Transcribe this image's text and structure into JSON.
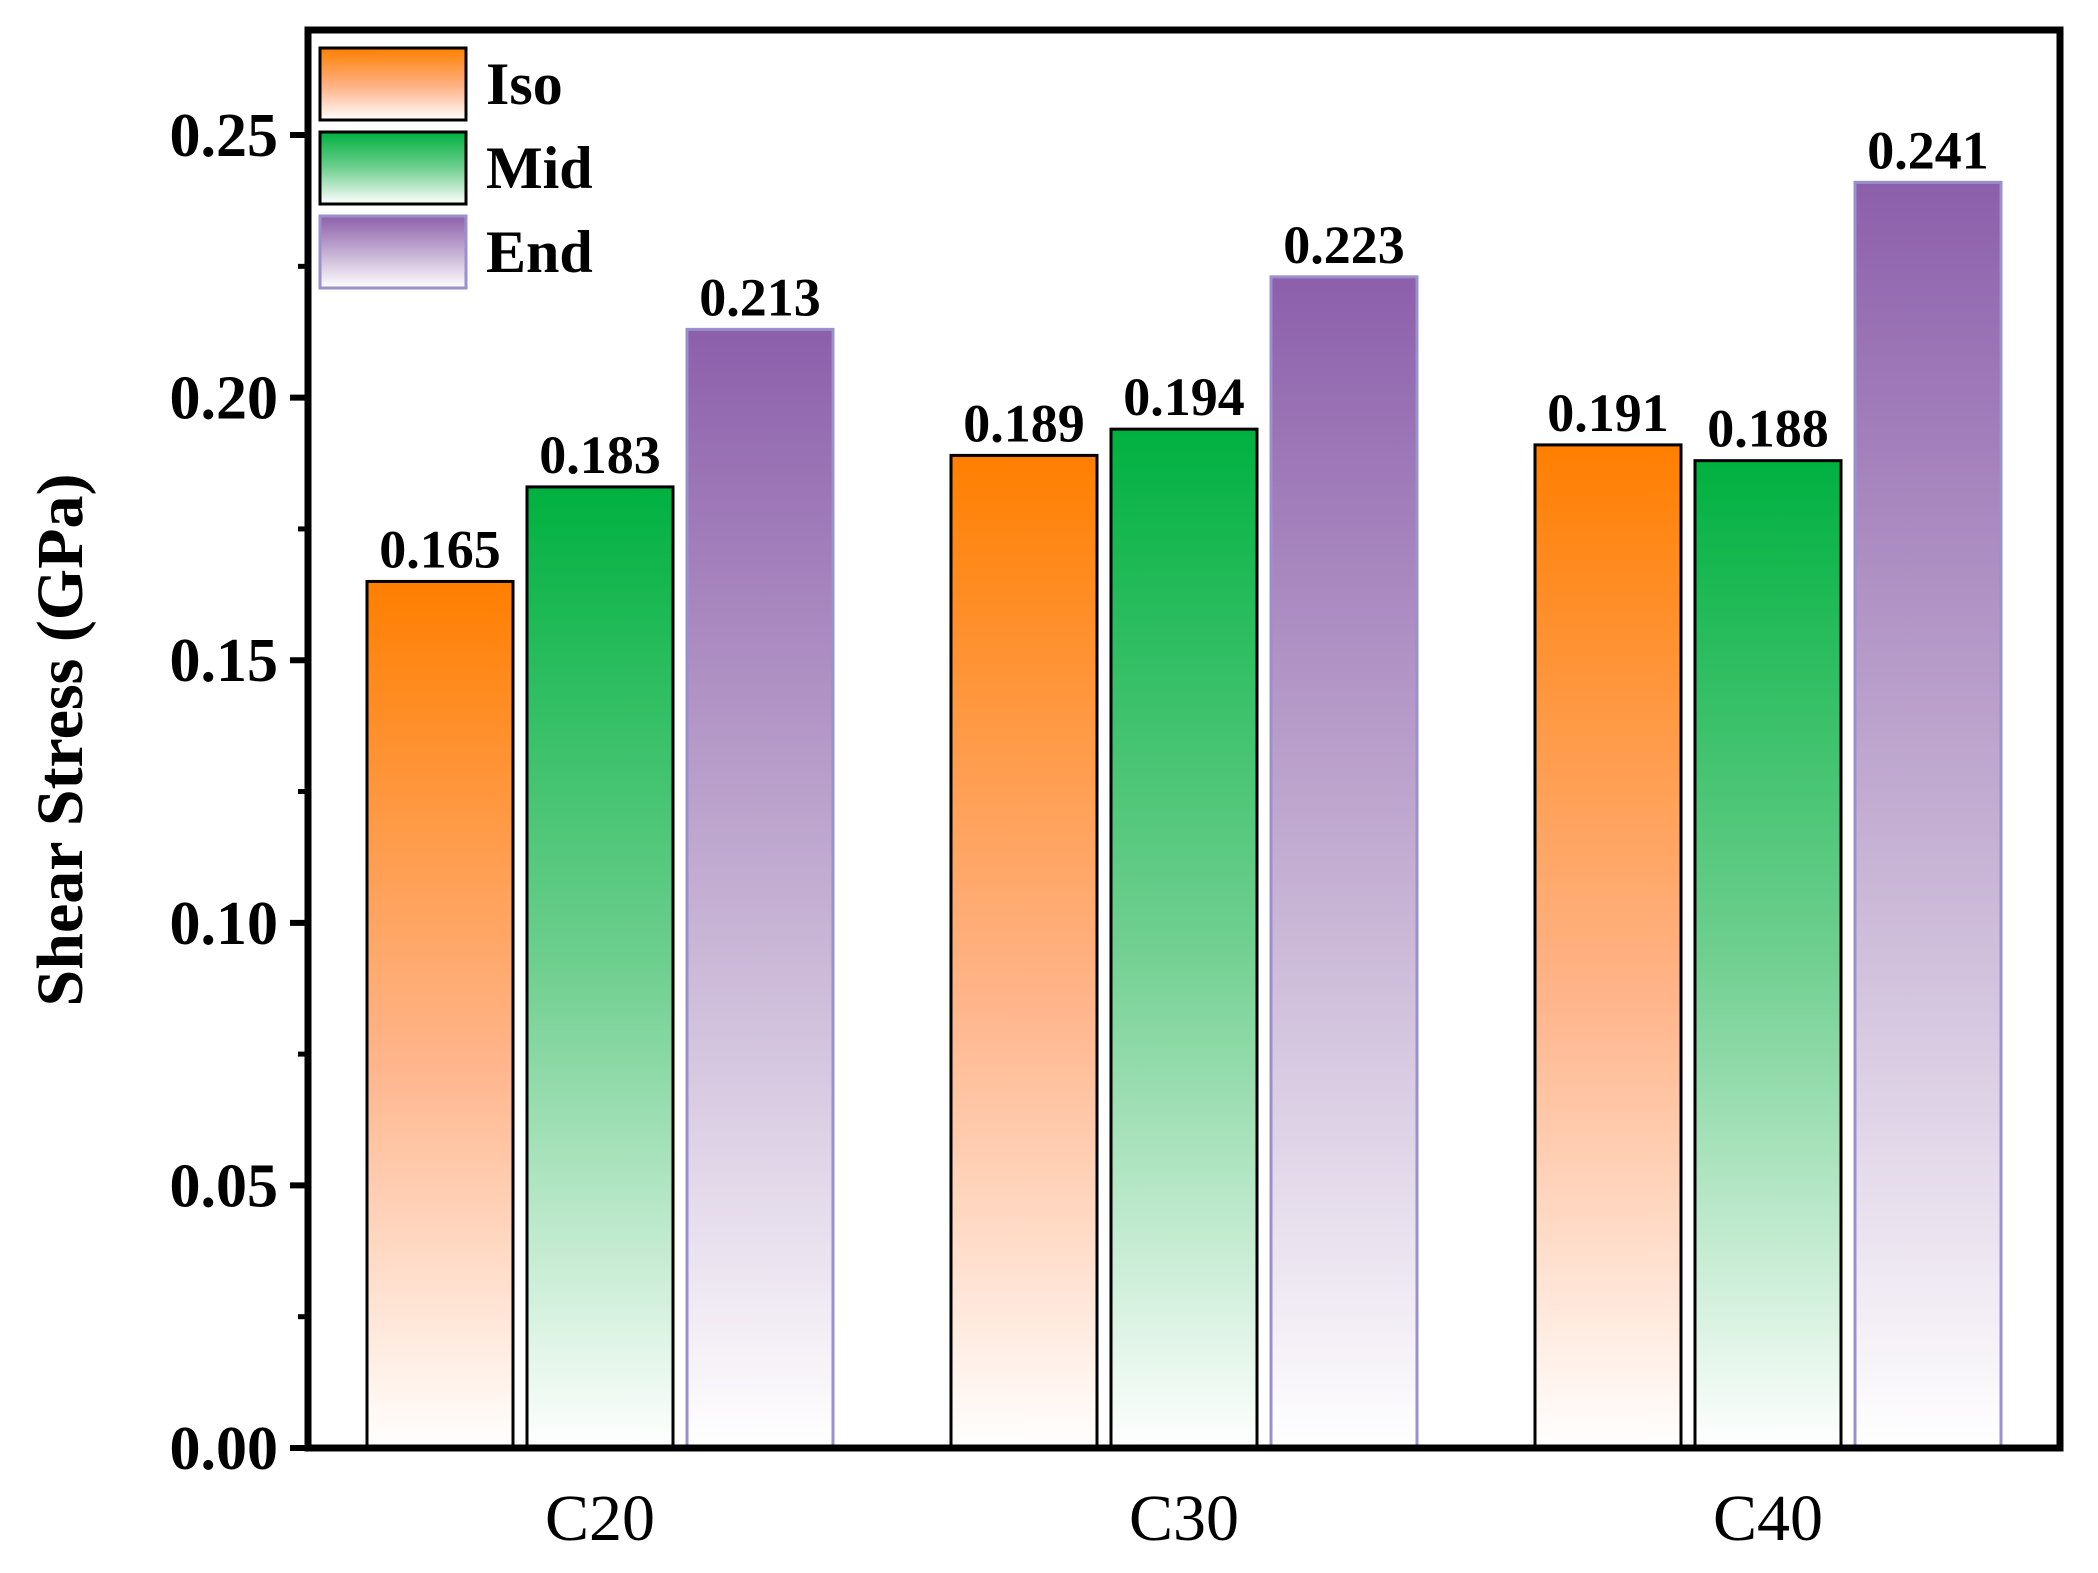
{
  "chart_data": {
    "type": "bar",
    "title": "",
    "xlabel": "",
    "ylabel": "Shear Stress (GPa)",
    "ylim": [
      0,
      0.27
    ],
    "yticks": [
      "0.00",
      "0.05",
      "0.10",
      "0.15",
      "0.20",
      "0.25"
    ],
    "categories": [
      "C20",
      "C30",
      "C40"
    ],
    "series": [
      {
        "name": "Iso",
        "values": [
          0.165,
          0.189,
          0.191
        ],
        "labels": [
          "0.165",
          "0.189",
          "0.191"
        ],
        "color": "#ff7f00"
      },
      {
        "name": "Mid",
        "values": [
          0.183,
          0.194,
          0.188
        ],
        "labels": [
          "0.183",
          "0.194",
          "0.188"
        ],
        "color": "#00b140"
      },
      {
        "name": "End",
        "values": [
          0.213,
          0.223,
          0.241
        ],
        "labels": [
          "0.213",
          "0.223",
          "0.241"
        ],
        "color": "#8c5fab"
      }
    ],
    "legend_position": "top-left",
    "grid": false
  }
}
